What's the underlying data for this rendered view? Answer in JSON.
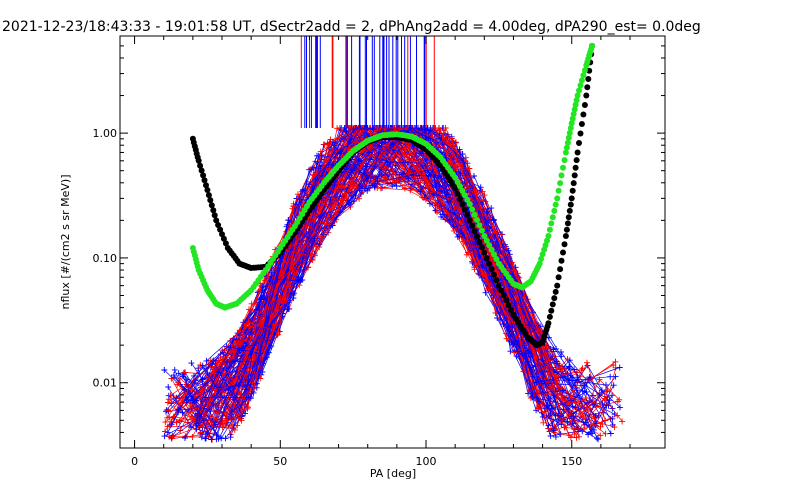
{
  "chart_data": {
    "type": "line",
    "title": "2021-12-23/18:43:33 - 19:01:58 UT, dSectr2add = 2, dPhAng2add = 4.00deg, dPA290_est=   0.0deg",
    "xlabel": "PA [deg]",
    "ylabel": "nflux [#/(cm2 s sr MeV)]",
    "xlim": [
      -5,
      182
    ],
    "ylim": [
      0.003,
      6.0
    ],
    "yscale": "log",
    "x_ticks": [
      0,
      50,
      100,
      150
    ],
    "x_tick_labels": [
      "0",
      "50",
      "100",
      "150"
    ],
    "y_ticks": [
      0.01,
      0.1,
      1.0
    ],
    "y_tick_labels": [
      "0.01",
      "0.10",
      "1.00"
    ],
    "colors": {
      "red": "#ff0000",
      "blue": "#0000ff",
      "black": "#000000",
      "green": "#22e622"
    },
    "series": [
      {
        "color": "black",
        "style": "dots",
        "x": [
          20,
          22,
          25,
          28,
          32,
          36,
          40,
          45,
          50,
          55,
          60,
          65,
          70,
          75,
          80,
          85,
          90,
          95,
          100,
          105,
          110,
          115,
          120,
          125,
          130,
          135,
          138,
          140,
          142,
          145,
          148,
          150,
          152,
          155,
          157
        ],
        "y": [
          0.9,
          0.6,
          0.35,
          0.2,
          0.12,
          0.09,
          0.083,
          0.085,
          0.11,
          0.16,
          0.24,
          0.35,
          0.5,
          0.7,
          0.85,
          0.93,
          0.93,
          0.88,
          0.74,
          0.55,
          0.36,
          0.2,
          0.11,
          0.06,
          0.035,
          0.023,
          0.02,
          0.021,
          0.03,
          0.06,
          0.15,
          0.3,
          0.7,
          2.0,
          5.0
        ]
      },
      {
        "color": "green",
        "style": "dots",
        "x": [
          20,
          22,
          25,
          28,
          31,
          35,
          40,
          45,
          50,
          55,
          60,
          65,
          70,
          75,
          80,
          85,
          90,
          95,
          100,
          105,
          110,
          115,
          120,
          125,
          130,
          133,
          136,
          139,
          142,
          145,
          148,
          150,
          152,
          155,
          157
        ],
        "y": [
          0.12,
          0.08,
          0.055,
          0.043,
          0.04,
          0.043,
          0.055,
          0.08,
          0.12,
          0.18,
          0.28,
          0.4,
          0.55,
          0.72,
          0.87,
          0.96,
          0.98,
          0.94,
          0.82,
          0.64,
          0.44,
          0.27,
          0.15,
          0.09,
          0.062,
          0.058,
          0.065,
          0.09,
          0.15,
          0.3,
          0.7,
          1.2,
          2.0,
          3.5,
          5.0
        ]
      }
    ]
  }
}
